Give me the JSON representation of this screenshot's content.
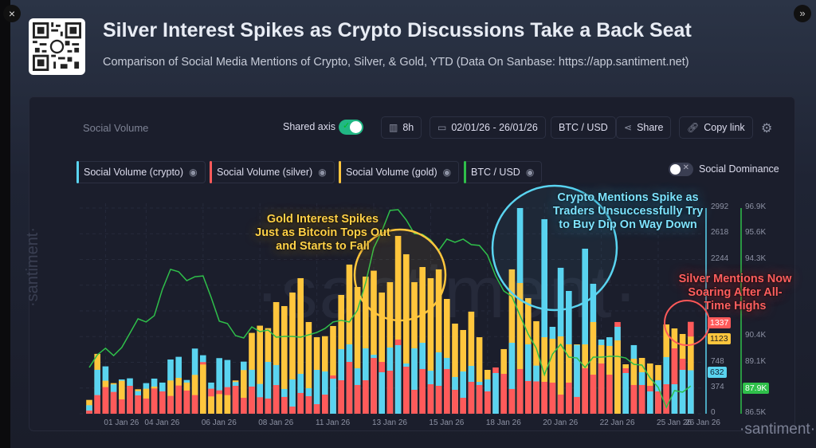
{
  "header": {
    "title": "Silver Interest Spikes as Crypto Discussions Take a Back Seat",
    "subtitle": "Comparison of Social Media Mentions of Crypto, Silver, & Gold, YTD (Data On Sanbase: https://app.santiment.net)",
    "close_icon": "×",
    "expand_icon": "»"
  },
  "toolbar": {
    "metric_title": "Social Volume",
    "shared_axis_label": "Shared axis",
    "shared_axis_on": true,
    "interval": "8h",
    "date_range": "02/01/26 - 26/01/26",
    "pair": "BTC / USD",
    "share_label": "Share",
    "copy_link_label": "Copy link",
    "social_dominance_label": "Social Dominance",
    "social_dominance_on": false
  },
  "legend": [
    {
      "label": "Social Volume (crypto)",
      "color": "#5ad4f0"
    },
    {
      "label": "Social Volume (silver)",
      "color": "#ff5a5a"
    },
    {
      "label": "Social Volume (gold)",
      "color": "#ffc63d"
    },
    {
      "label": "BTC / USD",
      "color": "#2fbf4a"
    }
  ],
  "annotations": {
    "gold": "Gold Interest Spikes Just as Bitcoin Tops Out and Starts to Fall",
    "crypto": "Crypto Mentions Spike as Traders Unsuccessfully Try to Buy Dip On Way Down",
    "silver": "Silver Mentions Now Soaring After All-Time Highs"
  },
  "watermark": "·santiment·",
  "chart_data": {
    "type": "bar",
    "interval": "8h",
    "overlay": "bars overlaid from zero (shared axis), plus BTC/USD line on secondary axis",
    "x_tick_labels": [
      "01 Jan 26",
      "04 Jan 26",
      "06 Jan 26",
      "08 Jan 26",
      "11 Jan 26",
      "13 Jan 26",
      "15 Jan 26",
      "18 Jan 26",
      "20 Jan 26",
      "22 Jan 26",
      "25 Jan 26",
      "26 Jan 26"
    ],
    "y_left": {
      "ticks": [
        0,
        374,
        748,
        2244,
        2618,
        2992
      ],
      "range": [
        0,
        2992
      ]
    },
    "y_right": {
      "ticks": [
        "86.5K",
        "89.1K",
        "90.4K",
        "94.3K",
        "95.6K",
        "96.9K"
      ],
      "range": [
        86.5,
        96.9
      ],
      "unit": "K"
    },
    "last_values": {
      "silver": "1337",
      "gold": "1123",
      "crypto": "632",
      "btc": "87.9K"
    },
    "grid": true,
    "series": [
      {
        "name": "Social Volume (crypto)",
        "color": "#5ad4f0",
        "values": [
          124,
          639,
          689,
          426,
          499,
          515,
          329,
          445,
          511,
          453,
          789,
          828,
          491,
          948,
          851,
          453,
          809,
          782,
          461,
          758,
          639,
          433,
          754,
          708,
          360,
          499,
          580,
          371,
          638,
          615,
          510,
          940,
          1009,
          661,
          951,
          858,
          603,
          963,
          998,
          731,
          951,
          1032,
          626,
          893,
          812,
          534,
          615,
          696,
          464,
          499,
          592,
          0,
          1032,
          2992,
          1009,
          700,
          2830,
          1264,
          2123,
          1786,
          1000,
          2401,
          1891,
          1079,
          1113,
          1264,
          592,
          998,
          603,
          325,
          487,
          824,
          429,
          638,
          632
        ]
      },
      {
        "name": "Social Volume (silver)",
        "color": "#ff5a5a",
        "values": [
          46,
          271,
          387,
          317,
          209,
          406,
          267,
          221,
          368,
          325,
          259,
          410,
          337,
          271,
          751,
          364,
          341,
          387,
          406,
          232,
          395,
          240,
          221,
          417,
          244,
          104,
          302,
          255,
          139,
          278,
          557,
          487,
          754,
          418,
          487,
          812,
          754,
          626,
          1079,
          684,
          348,
          650,
          429,
          406,
          650,
          348,
          232,
          464,
          418,
          325,
          673,
          580,
          360,
          650,
          476,
          470,
          464,
          452,
          278,
          452,
          244,
          661,
          568,
          731,
          568,
          1334,
          661,
          418,
          418,
          406,
          325,
          429,
          951,
          800,
          1337
        ]
      },
      {
        "name": "Social Volume (gold)",
        "color": "#ffc63d",
        "values": [
          201,
          871,
          480,
          445,
          480,
          0,
          356,
          364,
          395,
          0,
          484,
          522,
          453,
          565,
          716,
          252,
          286,
          271,
          484,
          635,
          1176,
          1281,
          1245,
          1624,
          1566,
          1763,
          1972,
          1334,
          1113,
          1128,
          1276,
          1728,
          2170,
          1844,
          1995,
          2081,
          1763,
          1914,
          2587,
          2320,
          1914,
          2134,
          1972,
          2100,
          1670,
          1311,
          1218,
          1485,
          1113,
          638,
          0,
          940,
          2100,
          1902,
          1682,
          1346,
          1113,
          1090,
          1125,
          1009,
          1009,
          1009,
          1334,
          998,
          986,
          1067,
          719,
          800,
          812,
          731,
          708,
          1299,
          1241,
          1160,
          1123
        ]
      },
      {
        "name": "BTC / USD",
        "color": "#2fbf4a",
        "type": "line",
        "unit": "K",
        "values": [
          88.84,
          89.48,
          89.81,
          89.44,
          89.85,
          90.57,
          91.3,
          91.14,
          91.46,
          92.79,
          93.8,
          93.68,
          93.23,
          93.43,
          93.47,
          92.38,
          91.18,
          91.06,
          90.45,
          90.33,
          90.89,
          90.65,
          90.73,
          90.37,
          90.41,
          90.41,
          90.37,
          90.49,
          90.61,
          90.81,
          91.14,
          91.22,
          91.14,
          91.74,
          93.11,
          94.88,
          95.73,
          96.78,
          96.82,
          96.3,
          95.61,
          95.57,
          95.29,
          94.76,
          95.33,
          95.17,
          95.33,
          95.05,
          95.01,
          94.52,
          93.47,
          92.71,
          92.43,
          91.46,
          90.53,
          89.81,
          88.47,
          89.52,
          90.01,
          89.36,
          89.32,
          88.84,
          89.36,
          89.36,
          89.4,
          89.4,
          89.32,
          89.0,
          88.96,
          88.31,
          87.83,
          86.82,
          87.67,
          87.59,
          87.9
        ]
      }
    ]
  }
}
